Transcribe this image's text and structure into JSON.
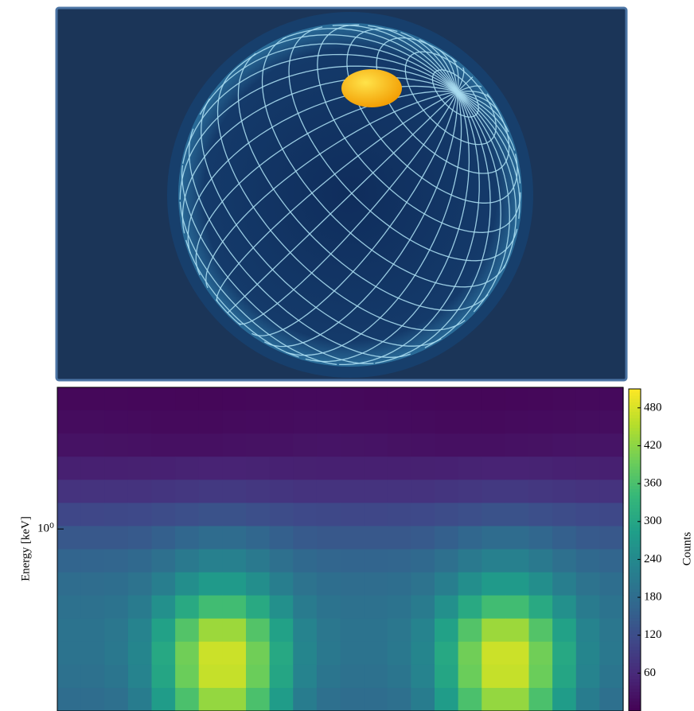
{
  "chart_data": {
    "type": "heatmap",
    "ylabel": "Energy [keV]",
    "colorbar_label": "Counts",
    "yscale": "log",
    "ylim": [
      0.2,
      3.5
    ],
    "yticks": [
      {
        "value": 1,
        "label": "10⁰"
      }
    ],
    "clim": [
      0,
      510
    ],
    "cticks": [
      60,
      120,
      180,
      240,
      300,
      360,
      420,
      480
    ],
    "colormap": [
      "#440154",
      "#482878",
      "#3e4989",
      "#31688e",
      "#26828e",
      "#1f9e89",
      "#35b779",
      "#6ece58",
      "#b5de2b",
      "#fde725"
    ],
    "z": [
      [
        10,
        10,
        10,
        9,
        9,
        8,
        8,
        9,
        10,
        11,
        12,
        12,
        11,
        10,
        10,
        9,
        8,
        8,
        8,
        9,
        10,
        11,
        12,
        12
      ],
      [
        16,
        16,
        15,
        14,
        13,
        13,
        13,
        14,
        15,
        16,
        17,
        17,
        16,
        16,
        15,
        14,
        13,
        13,
        13,
        14,
        15,
        16,
        17,
        17
      ],
      [
        25,
        25,
        24,
        23,
        22,
        22,
        22,
        23,
        24,
        25,
        27,
        28,
        27,
        26,
        24,
        23,
        22,
        22,
        22,
        23,
        24,
        26,
        27,
        28
      ],
      [
        45,
        45,
        45,
        46,
        47,
        49,
        50,
        50,
        49,
        47,
        46,
        45,
        45,
        45,
        45,
        46,
        47,
        49,
        50,
        50,
        49,
        47,
        46,
        45
      ],
      [
        75,
        75,
        75,
        76,
        79,
        82,
        85,
        85,
        82,
        79,
        76,
        75,
        75,
        75,
        75,
        76,
        79,
        82,
        85,
        85,
        82,
        79,
        76,
        75
      ],
      [
        110,
        110,
        111,
        113,
        118,
        124,
        129,
        129,
        124,
        118,
        113,
        111,
        110,
        110,
        111,
        113,
        118,
        124,
        129,
        129,
        124,
        118,
        113,
        111
      ],
      [
        140,
        140,
        141,
        145,
        155,
        168,
        178,
        178,
        168,
        155,
        145,
        141,
        140,
        140,
        141,
        145,
        155,
        168,
        178,
        178,
        168,
        155,
        145,
        141
      ],
      [
        165,
        165,
        167,
        173,
        188,
        207,
        222,
        222,
        207,
        188,
        173,
        167,
        165,
        165,
        167,
        173,
        188,
        207,
        222,
        222,
        207,
        188,
        173,
        167
      ],
      [
        180,
        180,
        183,
        193,
        218,
        250,
        275,
        275,
        250,
        218,
        193,
        183,
        180,
        180,
        183,
        193,
        218,
        250,
        275,
        275,
        250,
        218,
        193,
        183
      ],
      [
        190,
        190,
        195,
        212,
        255,
        309,
        352,
        352,
        309,
        255,
        212,
        195,
        190,
        190,
        195,
        212,
        255,
        309,
        352,
        352,
        309,
        255,
        212,
        195
      ],
      [
        195,
        195,
        203,
        228,
        290,
        370,
        433,
        433,
        370,
        290,
        228,
        203,
        195,
        195,
        203,
        228,
        290,
        370,
        433,
        433,
        370,
        290,
        228,
        203
      ],
      [
        195,
        195,
        204,
        233,
        305,
        398,
        471,
        471,
        398,
        305,
        233,
        204,
        195,
        195,
        204,
        233,
        305,
        398,
        471,
        471,
        398,
        305,
        233,
        204
      ],
      [
        190,
        190,
        199,
        228,
        300,
        393,
        466,
        466,
        393,
        300,
        228,
        199,
        190,
        190,
        199,
        228,
        300,
        393,
        466,
        466,
        393,
        300,
        228,
        199
      ],
      [
        180,
        180,
        188,
        214,
        279,
        362,
        427,
        427,
        362,
        279,
        214,
        188,
        180,
        180,
        188,
        214,
        279,
        362,
        427,
        427,
        362,
        279,
        214,
        188
      ]
    ]
  }
}
